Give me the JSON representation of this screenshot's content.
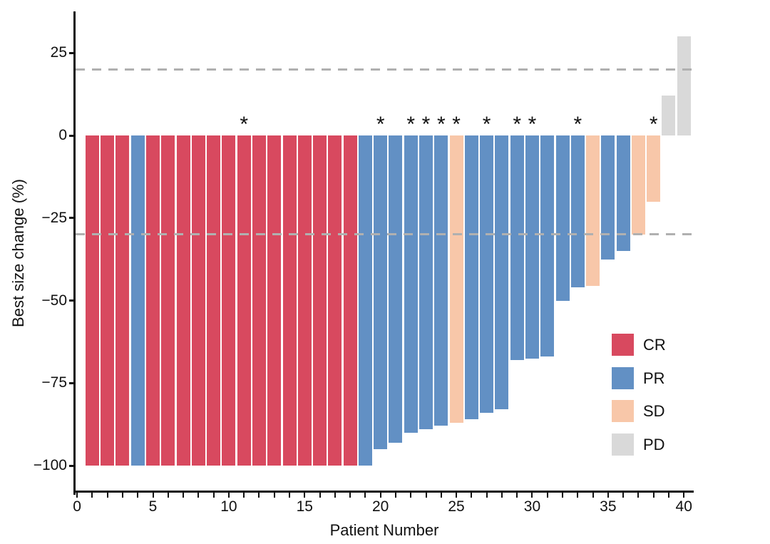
{
  "chart_data": {
    "type": "bar",
    "subtype": "waterfall",
    "title": "",
    "xlabel": "Patient Number",
    "ylabel": "Best size change (%)",
    "xlim": [
      -0.1,
      40.6
    ],
    "ylim": [
      -108,
      38
    ],
    "grid": false,
    "xticks_labeled": [
      0,
      5,
      10,
      15,
      20,
      25,
      30,
      35,
      40
    ],
    "xticks_minor_every": 1,
    "yticks": [
      {
        "v": 25,
        "label": "25"
      },
      {
        "v": 0,
        "label": "0"
      },
      {
        "v": -25,
        "label": "−25"
      },
      {
        "v": -50,
        "label": "−50"
      },
      {
        "v": -75,
        "label": "−75"
      },
      {
        "v": -100,
        "label": "−100"
      }
    ],
    "thresholds": [
      {
        "value": 20,
        "style": "dashed",
        "color": "#b0b0b0"
      },
      {
        "value": -30,
        "style": "dashed",
        "color": "#b0b0b0"
      }
    ],
    "annotation_symbol": "*",
    "colors": {
      "CR": "#d8495f",
      "PR": "#6290c4",
      "SD": "#f8c7a9",
      "PD": "#d9d9d9"
    },
    "legend": {
      "position": "inside-bottom-right",
      "entries": [
        {
          "label": "CR",
          "response": "CR",
          "color": "#d8495f"
        },
        {
          "label": "PR",
          "response": "PR",
          "color": "#6290c4"
        },
        {
          "label": "SD",
          "response": "SD",
          "color": "#f8c7a9"
        },
        {
          "label": "PD",
          "response": "PD",
          "color": "#d9d9d9"
        }
      ]
    },
    "patients": [
      {
        "n": 1,
        "value": -100,
        "response": "CR",
        "star": false
      },
      {
        "n": 2,
        "value": -100,
        "response": "CR",
        "star": false
      },
      {
        "n": 3,
        "value": -100,
        "response": "CR",
        "star": false
      },
      {
        "n": 4,
        "value": -100,
        "response": "PR",
        "star": false
      },
      {
        "n": 5,
        "value": -100,
        "response": "CR",
        "star": false
      },
      {
        "n": 6,
        "value": -100,
        "response": "CR",
        "star": false
      },
      {
        "n": 7,
        "value": -100,
        "response": "CR",
        "star": false
      },
      {
        "n": 8,
        "value": -100,
        "response": "CR",
        "star": false
      },
      {
        "n": 9,
        "value": -100,
        "response": "CR",
        "star": false
      },
      {
        "n": 10,
        "value": -100,
        "response": "CR",
        "star": false
      },
      {
        "n": 11,
        "value": -100,
        "response": "CR",
        "star": true
      },
      {
        "n": 12,
        "value": -100,
        "response": "CR",
        "star": false
      },
      {
        "n": 13,
        "value": -100,
        "response": "CR",
        "star": false
      },
      {
        "n": 14,
        "value": -100,
        "response": "CR",
        "star": false
      },
      {
        "n": 15,
        "value": -100,
        "response": "CR",
        "star": false
      },
      {
        "n": 16,
        "value": -100,
        "response": "CR",
        "star": false
      },
      {
        "n": 17,
        "value": -100,
        "response": "CR",
        "star": false
      },
      {
        "n": 18,
        "value": -100,
        "response": "CR",
        "star": false
      },
      {
        "n": 19,
        "value": -100,
        "response": "PR",
        "star": false
      },
      {
        "n": 20,
        "value": -95,
        "response": "PR",
        "star": true
      },
      {
        "n": 21,
        "value": -93,
        "response": "PR",
        "star": false
      },
      {
        "n": 22,
        "value": -90,
        "response": "PR",
        "star": true
      },
      {
        "n": 23,
        "value": -89,
        "response": "PR",
        "star": true
      },
      {
        "n": 24,
        "value": -88,
        "response": "PR",
        "star": true
      },
      {
        "n": 25,
        "value": -87,
        "response": "SD",
        "star": true
      },
      {
        "n": 26,
        "value": -86,
        "response": "PR",
        "star": false
      },
      {
        "n": 27,
        "value": -84,
        "response": "PR",
        "star": true
      },
      {
        "n": 28,
        "value": -83,
        "response": "PR",
        "star": false
      },
      {
        "n": 29,
        "value": -68,
        "response": "PR",
        "star": true
      },
      {
        "n": 30,
        "value": -67.5,
        "response": "PR",
        "star": true
      },
      {
        "n": 31,
        "value": -67,
        "response": "PR",
        "star": false
      },
      {
        "n": 32,
        "value": -50,
        "response": "PR",
        "star": false
      },
      {
        "n": 33,
        "value": -46,
        "response": "PR",
        "star": true
      },
      {
        "n": 34,
        "value": -45.5,
        "response": "SD",
        "star": false
      },
      {
        "n": 35,
        "value": -37.5,
        "response": "PR",
        "star": false
      },
      {
        "n": 36,
        "value": -35,
        "response": "PR",
        "star": false
      },
      {
        "n": 37,
        "value": -30,
        "response": "SD",
        "star": false
      },
      {
        "n": 38,
        "value": -20,
        "response": "SD",
        "star": true
      },
      {
        "n": 39,
        "value": 12,
        "response": "PD",
        "star": false
      },
      {
        "n": 40,
        "value": 30,
        "response": "PD",
        "star": false
      }
    ]
  }
}
